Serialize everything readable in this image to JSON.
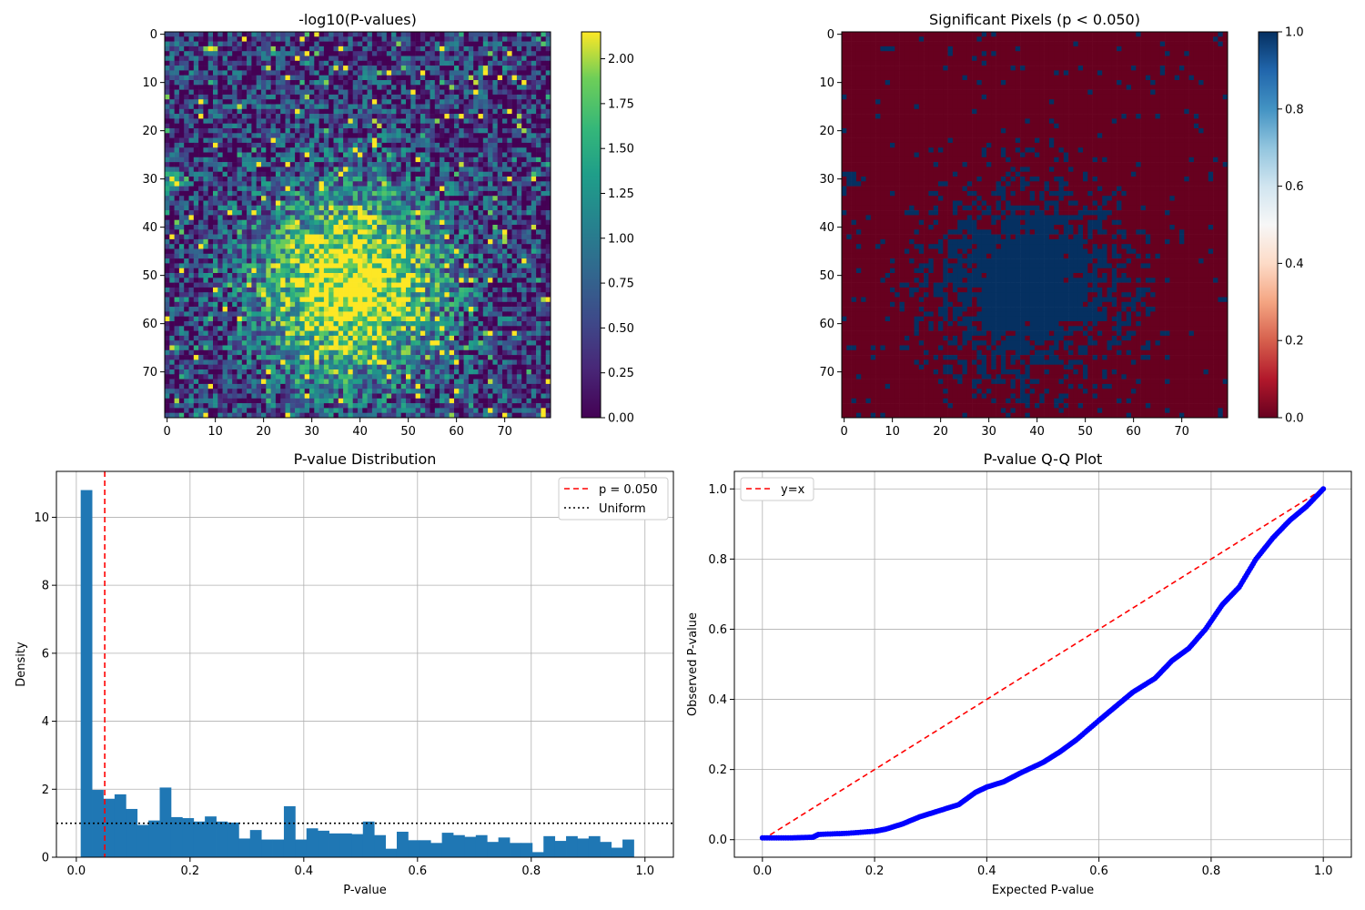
{
  "chart_data": [
    {
      "type": "heatmap",
      "title": "-log10(P-values)",
      "grid_size": [
        80,
        80
      ],
      "x_ticks": [
        "0",
        "10",
        "20",
        "30",
        "40",
        "50",
        "60",
        "70"
      ],
      "y_ticks": [
        "0",
        "10",
        "20",
        "30",
        "40",
        "50",
        "60",
        "70"
      ],
      "colormap": "viridis",
      "colorbar_ticks": [
        "0.00",
        "0.25",
        "0.50",
        "0.75",
        "1.00",
        "1.25",
        "1.50",
        "1.75",
        "2.00"
      ],
      "colorbar_range": [
        0,
        2.15
      ],
      "hotspots": [
        {
          "x": 38,
          "y": 52,
          "sigma": 14,
          "peak": 2.0
        },
        {
          "x": 1.5,
          "y": 31,
          "sigma": 1.2,
          "peak": 2.15
        }
      ],
      "grid": false
    },
    {
      "type": "heatmap",
      "title": "Significant Pixels (p < 0.050)",
      "grid_size": [
        80,
        80
      ],
      "x_ticks": [
        "0",
        "10",
        "20",
        "30",
        "40",
        "50",
        "60",
        "70"
      ],
      "y_ticks": [
        "0",
        "10",
        "20",
        "30",
        "40",
        "50",
        "60",
        "70"
      ],
      "colormap": "RdBu",
      "colorbar_ticks": [
        "0.0",
        "0.2",
        "0.4",
        "0.6",
        "0.8",
        "1.0"
      ],
      "colorbar_range": [
        0,
        1
      ],
      "colors": {
        "low": "#67001f",
        "high": "#053061"
      },
      "grid": false
    },
    {
      "type": "bar",
      "title": "P-value Distribution",
      "xlabel": "P-value",
      "ylabel": "Density",
      "xlim": [
        -0.035,
        1.05
      ],
      "ylim": [
        0,
        11.35
      ],
      "x_ticks": [
        "0.0",
        "0.2",
        "0.4",
        "0.6",
        "0.8",
        "1.0"
      ],
      "y_ticks": [
        "0",
        "2",
        "4",
        "6",
        "8",
        "10"
      ],
      "bin_edges_start": 0.0077,
      "bin_width": 0.01985,
      "values": [
        10.8,
        1.98,
        1.72,
        1.85,
        1.42,
        0.95,
        1.08,
        2.05,
        1.18,
        1.15,
        1.05,
        1.2,
        1.05,
        1.02,
        0.55,
        0.8,
        0.52,
        0.52,
        1.5,
        0.52,
        0.85,
        0.78,
        0.7,
        0.7,
        0.68,
        1.05,
        0.65,
        0.25,
        0.75,
        0.5,
        0.5,
        0.42,
        0.72,
        0.65,
        0.6,
        0.65,
        0.45,
        0.58,
        0.42,
        0.42,
        0.15,
        0.62,
        0.48,
        0.62,
        0.55,
        0.62,
        0.45,
        0.28,
        0.52
      ],
      "threshold": 0.05,
      "uniform_density": 1.0,
      "legend": [
        "p = 0.050",
        "Uniform"
      ],
      "legend_location": "top-right",
      "colors": {
        "bars": "#1f77b4",
        "threshold": "#ff0000",
        "uniform": "#000000"
      },
      "grid": true
    },
    {
      "type": "scatter",
      "title": "P-value Q-Q Plot",
      "xlabel": "Expected P-value",
      "ylabel": "Observed P-value",
      "xlim": [
        -0.05,
        1.05
      ],
      "ylim": [
        -0.05,
        1.05
      ],
      "x_ticks": [
        "0.0",
        "0.2",
        "0.4",
        "0.6",
        "0.8",
        "1.0"
      ],
      "y_ticks": [
        "0.0",
        "0.2",
        "0.4",
        "0.6",
        "0.8",
        "1.0"
      ],
      "x": [
        0.0,
        0.05,
        0.09,
        0.1,
        0.15,
        0.2,
        0.22,
        0.25,
        0.28,
        0.31,
        0.35,
        0.38,
        0.4,
        0.43,
        0.46,
        0.5,
        0.53,
        0.56,
        0.6,
        0.63,
        0.66,
        0.7,
        0.73,
        0.76,
        0.79,
        0.82,
        0.85,
        0.88,
        0.91,
        0.94,
        0.97,
        1.0
      ],
      "y": [
        0.005,
        0.005,
        0.007,
        0.015,
        0.018,
        0.024,
        0.03,
        0.045,
        0.065,
        0.08,
        0.1,
        0.135,
        0.15,
        0.165,
        0.19,
        0.22,
        0.25,
        0.285,
        0.34,
        0.38,
        0.42,
        0.46,
        0.51,
        0.545,
        0.6,
        0.67,
        0.72,
        0.8,
        0.86,
        0.91,
        0.95,
        1.0
      ],
      "reference_line": "y=x",
      "legend": [
        "y=x"
      ],
      "legend_location": "top-left",
      "colors": {
        "points": "#0000ff",
        "reference": "#ff0000"
      },
      "grid": true
    }
  ]
}
